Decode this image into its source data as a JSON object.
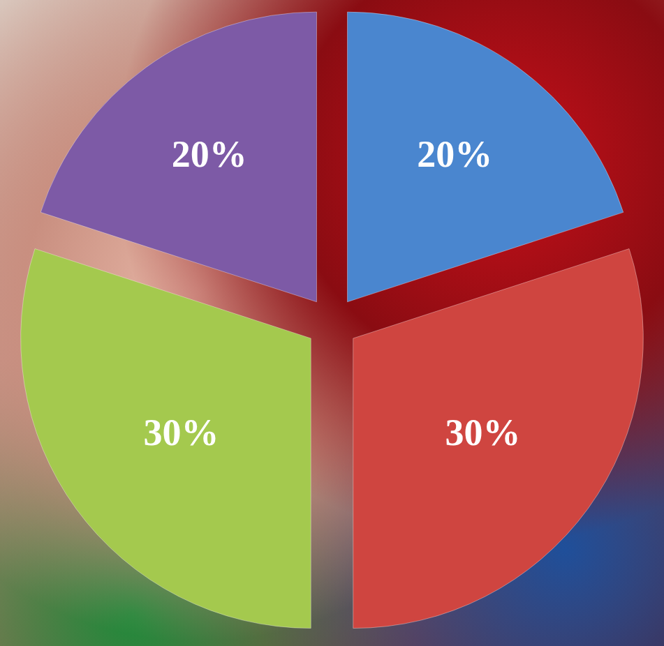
{
  "chart_data": {
    "type": "pie",
    "values": [
      20,
      30,
      30,
      20
    ],
    "value_labels": [
      "20%",
      "30%",
      "30%",
      "20%"
    ],
    "colors": [
      "#4a86cf",
      "#cf4540",
      "#a4c94e",
      "#7d5aa6"
    ],
    "data_labels": true
  }
}
